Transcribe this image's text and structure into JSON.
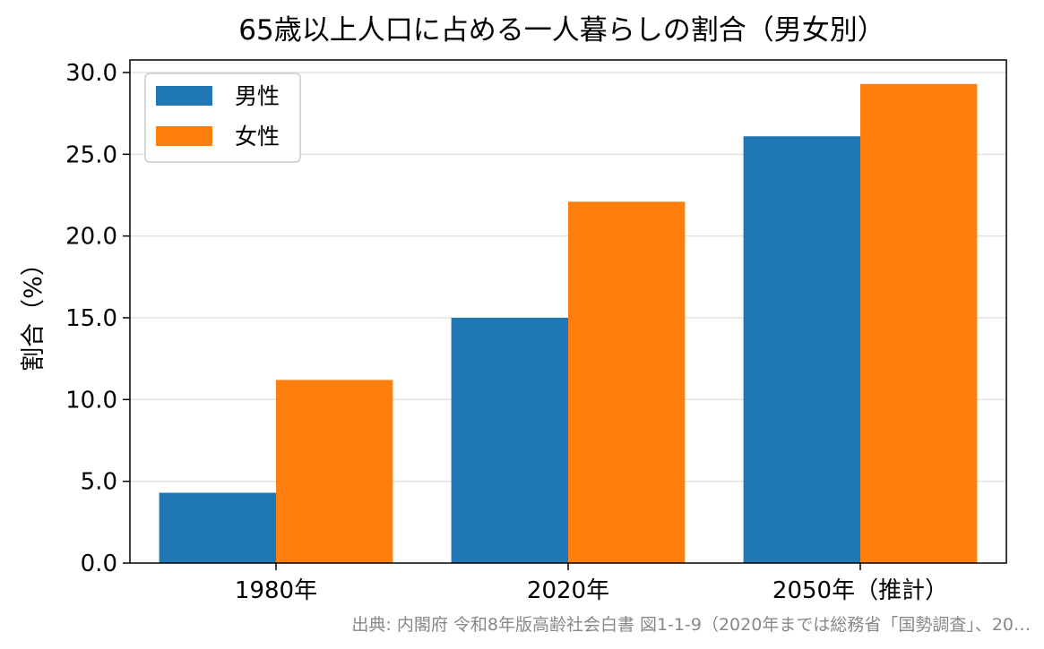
{
  "chart_data": {
    "type": "bar",
    "title": "65歳以上人口に占める一人暮らしの割合（男女別）",
    "xlabel": "",
    "ylabel": "割合（%）",
    "categories": [
      "1980年",
      "2020年",
      "2050年（推計）"
    ],
    "series": [
      {
        "name": "男性",
        "color": "#1f77b4",
        "values": [
          4.3,
          15.0,
          26.1
        ]
      },
      {
        "name": "女性",
        "color": "#ff7f0e",
        "values": [
          11.2,
          22.1,
          29.3
        ]
      }
    ],
    "ylim": [
      0,
      30.0
    ],
    "yticks": [
      "0.0",
      "5.0",
      "10.0",
      "15.0",
      "20.0",
      "25.0",
      "30.0"
    ],
    "grid": "y",
    "legend_position": "top-left"
  },
  "source_note": "出典: 内閣府 令和8年版高齢社会白書 図1-1-9（2020年までは総務省「国勢調査」、20…"
}
